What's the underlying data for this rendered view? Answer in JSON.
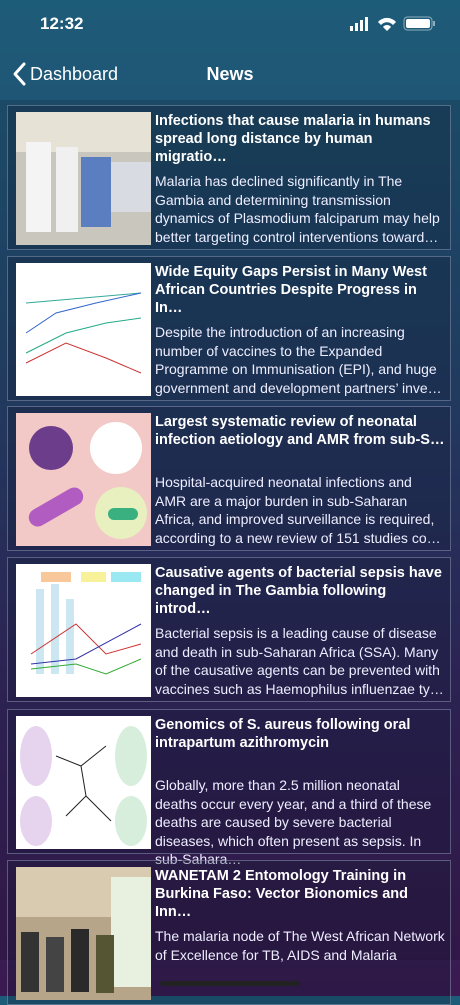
{
  "status_bar": {
    "time": "12:32"
  },
  "nav": {
    "back": "Dashboard",
    "title": "News"
  },
  "articles": [
    {
      "title": "Infections that cause malaria in humans spread long distance by human migratio…",
      "summary": "Malaria has declined significantly in The Gambia and determining transmission dynamics of Plasmodium falciparum may help better targeting control interventions toward…"
    },
    {
      "title": "Wide Equity Gaps Persist in Many West African Countries Despite Progress in In…",
      "summary": "Despite the introduction of an increasing number of vaccines to the Expanded Programme on Immunisation (EPI), and huge government and development partners’ inve…"
    },
    {
      "title": "Largest systematic review of neonatal infection aetiology and AMR from sub-S…",
      "summary": "Hospital-acquired neonatal infections and AMR are a major burden in sub-Saharan Africa, and improved surveillance is required, according to a new review of 151 studies co…"
    },
    {
      "title": "Causative agents of bacterial sepsis have changed in The Gambia following introd…",
      "summary": "Bacterial sepsis is a leading cause of disease and death in sub-Saharan Africa (SSA). Many of the causative agents can be prevented with vaccines such as Haemophilus influenzae ty…"
    },
    {
      "title": "Genomics of S. aureus following oral intrapartum azithromycin",
      "summary": "Globally, more than 2.5 million neonatal deaths occur every year, and a third of these deaths are caused by severe bacterial diseases, which often present as sepsis. In sub-Sahara…"
    },
    {
      "title": "WANETAM 2 Entomology Training in Burkina Faso: Vector Bionomics and Inn…",
      "summary": "The malaria node of The West African Network of Excellence for TB, AIDS and Malaria"
    }
  ]
}
